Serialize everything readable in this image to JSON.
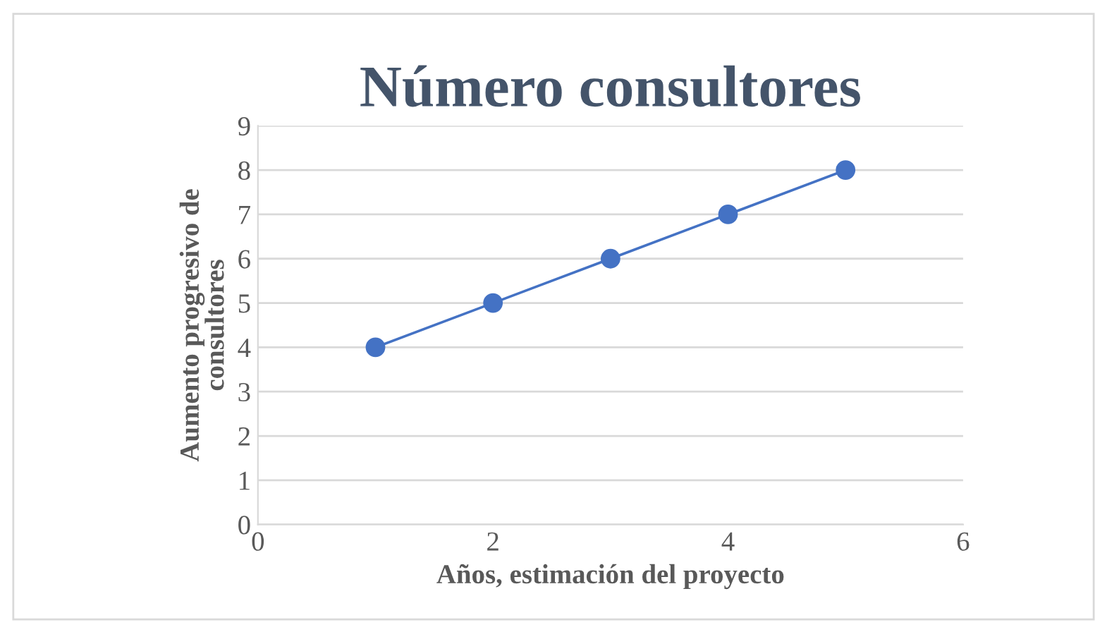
{
  "chart_data": {
    "type": "scatter",
    "title": "Número consultores",
    "xlabel": "Años, estimación del proyecto",
    "ylabel": "Aumento progresivo de\nconsultores",
    "x": [
      1,
      2,
      3,
      4,
      5
    ],
    "series": [
      {
        "color": "#4472c4",
        "values": [
          4,
          5,
          6,
          7,
          8
        ],
        "line_style": "solid"
      }
    ],
    "xlim": [
      0,
      6
    ],
    "xticks": [
      0,
      2,
      4,
      6
    ],
    "ylim": [
      0,
      9
    ],
    "yticks": [
      0,
      1,
      2,
      3,
      4,
      5,
      6,
      7,
      8,
      9
    ],
    "grid": "y",
    "marker": "circle",
    "legend": false
  }
}
